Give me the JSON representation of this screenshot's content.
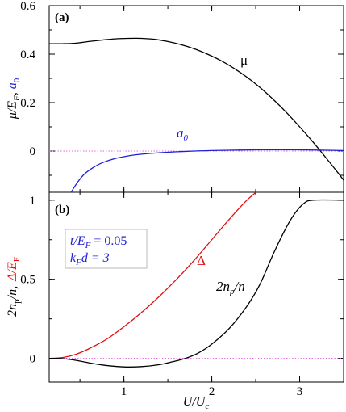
{
  "chart_data": [
    {
      "type": "line",
      "panel_label": "(a)",
      "xlabel": "",
      "ylabel": {
        "black": "μ/E",
        "black_sub": "F",
        "sep": ",",
        "blue": "a",
        "blue_sub": "0"
      },
      "xlim": [
        0.15,
        3.5
      ],
      "ylim": [
        -0.17,
        0.6
      ],
      "yticks": [
        "0.6",
        "0.4",
        "0.2",
        "0"
      ],
      "ytick_values": [
        0.6,
        0.4,
        0.2,
        0
      ],
      "xticks_values": [
        1,
        2,
        3
      ],
      "series": [
        {
          "name": "μ",
          "color": "#000000",
          "x": [
            0.15,
            0.3,
            0.45,
            0.6,
            0.75,
            0.9,
            1.05,
            1.2,
            1.35,
            1.5,
            1.65,
            1.8,
            1.95,
            2.1,
            2.25,
            2.4,
            2.55,
            2.7,
            2.85,
            3.0,
            3.15,
            3.3,
            3.45,
            3.5
          ],
          "y": [
            0.443,
            0.443,
            0.445,
            0.452,
            0.458,
            0.463,
            0.465,
            0.465,
            0.461,
            0.452,
            0.439,
            0.422,
            0.4,
            0.374,
            0.342,
            0.305,
            0.262,
            0.213,
            0.159,
            0.1,
            0.038,
            -0.028,
            -0.096,
            -0.12
          ]
        },
        {
          "name": "a₀",
          "color": "#1f1fd6",
          "x": [
            0.4,
            0.47,
            0.55,
            0.65,
            0.75,
            0.9,
            1.05,
            1.2,
            1.4,
            1.6,
            1.8,
            2.0,
            2.3,
            2.6,
            2.9,
            3.2,
            3.5
          ],
          "y": [
            -0.17,
            -0.13,
            -0.095,
            -0.068,
            -0.049,
            -0.031,
            -0.02,
            -0.013,
            -0.007,
            -0.003,
            0.0,
            0.002,
            0.004,
            0.005,
            0.005,
            0.004,
            0.002
          ]
        }
      ],
      "reference_line": {
        "y": 0,
        "color": "#e066e0",
        "style": "dotted"
      },
      "annotations": [
        {
          "text": "μ",
          "color": "#000000"
        },
        {
          "text": "a",
          "sub": "0",
          "color": "#1f1fd6"
        }
      ]
    },
    {
      "type": "line",
      "panel_label": "(b)",
      "xlabel": {
        "main": "U/U",
        "sub": "c"
      },
      "ylabel": {
        "black": "2n",
        "black_sub": "p",
        "black_rest": "/n,",
        "red": "Δ/E",
        "red_sub": "F"
      },
      "xlim": [
        0.15,
        3.5
      ],
      "ylim": [
        -0.15,
        1.05
      ],
      "yticks": [
        "1",
        "0.5",
        "0"
      ],
      "ytick_values": [
        1,
        0.5,
        0
      ],
      "xticks": [
        "1",
        "2",
        "3"
      ],
      "xtick_values": [
        1,
        2,
        3
      ],
      "series": [
        {
          "name": "Δ",
          "color": "#e01010",
          "x": [
            0.15,
            0.3,
            0.45,
            0.6,
            0.8,
            1.0,
            1.2,
            1.4,
            1.6,
            1.8,
            2.0,
            2.2,
            2.4,
            2.55
          ],
          "y": [
            0.0,
            0.005,
            0.025,
            0.06,
            0.12,
            0.2,
            0.29,
            0.39,
            0.5,
            0.62,
            0.75,
            0.88,
            1.0,
            1.07
          ]
        },
        {
          "name": "2n_p/n",
          "color": "#000000",
          "x": [
            0.15,
            0.3,
            0.45,
            0.6,
            0.8,
            1.0,
            1.2,
            1.4,
            1.55,
            1.7,
            1.85,
            2.0,
            2.2,
            2.4,
            2.55,
            2.7,
            2.85,
            2.95,
            3.05,
            3.15,
            3.5
          ],
          "y": [
            0.0,
            -0.002,
            -0.012,
            -0.028,
            -0.045,
            -0.054,
            -0.052,
            -0.04,
            -0.022,
            0.0,
            0.035,
            0.09,
            0.19,
            0.33,
            0.47,
            0.66,
            0.83,
            0.92,
            0.98,
            1.0,
            1.0
          ]
        }
      ],
      "reference_line": {
        "y": 0,
        "color": "#e066e0",
        "style": "dotted"
      },
      "annotations": [
        {
          "text": "Δ",
          "color": "#e01010"
        },
        {
          "text": "2n",
          "sub": "p",
          "rest": "/n",
          "color": "#000000"
        }
      ],
      "legend_box": {
        "line1": {
          "main": "t/E",
          "sub": "F",
          "rest": " = 0.05"
        },
        "line2": {
          "main": "k",
          "sub": "F",
          "rest": "d = 3"
        },
        "color": "#1f1fd6"
      }
    }
  ]
}
